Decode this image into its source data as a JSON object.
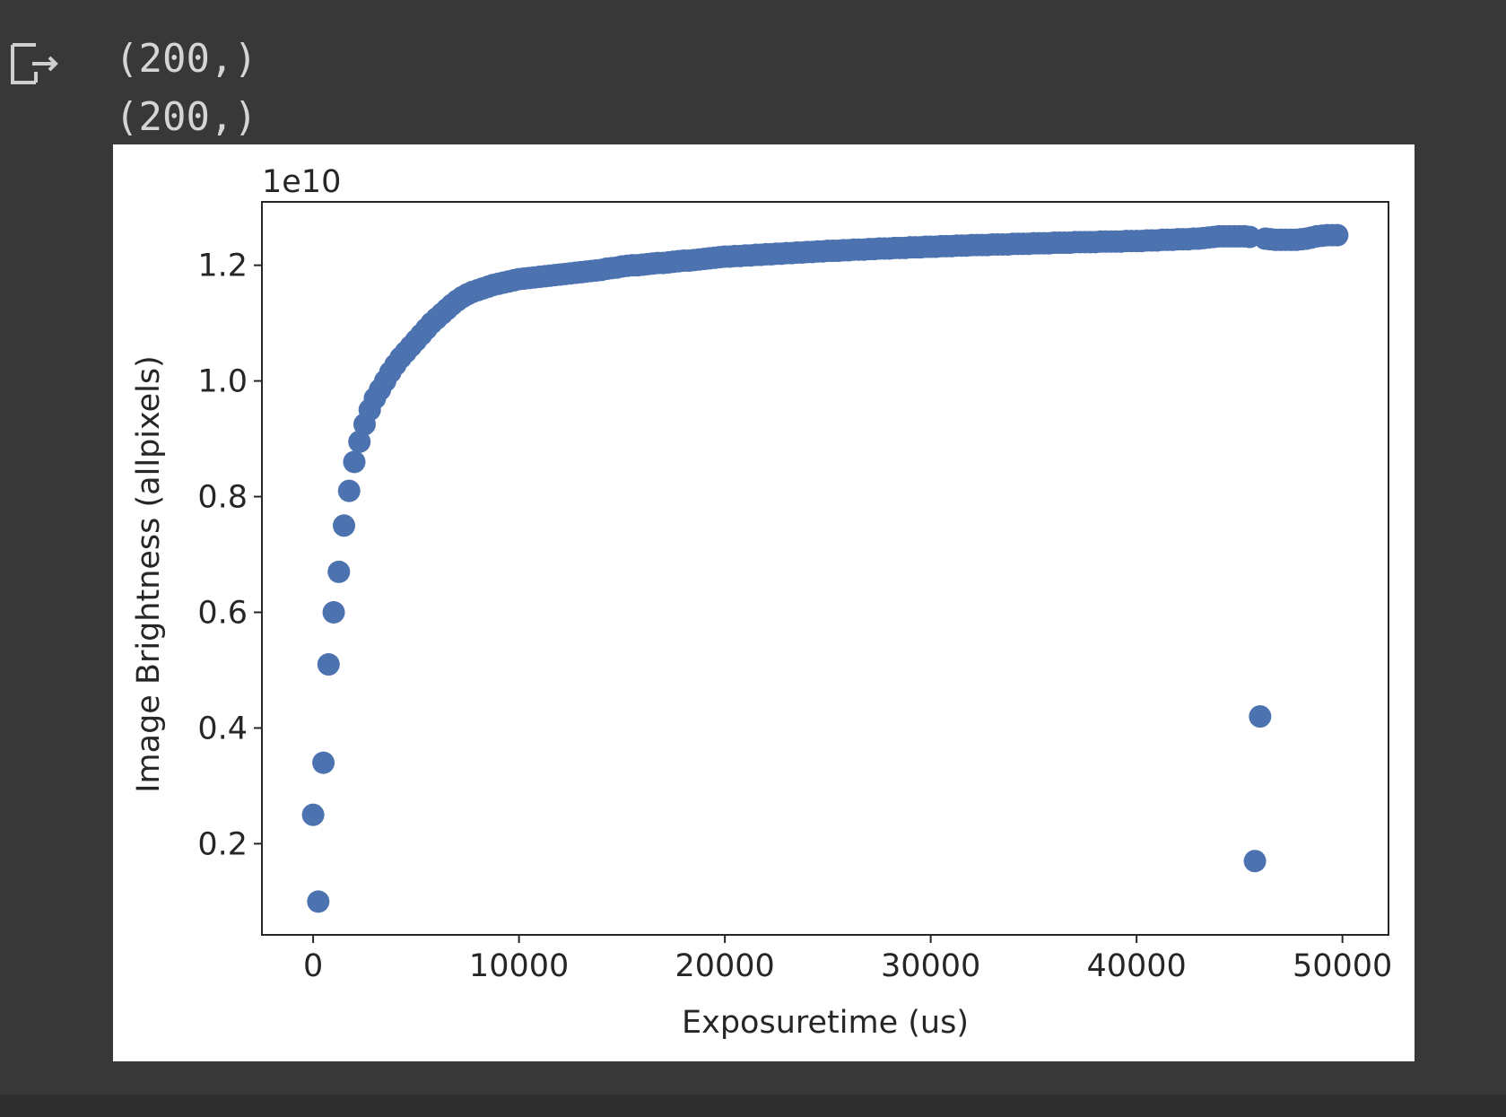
{
  "output_lines": [
    "(200,)",
    "(200,)"
  ],
  "chart_data": {
    "type": "scatter",
    "x_label": "Exposuretime (us)",
    "y_label": "Image Brightness (allpixels)",
    "y_offset_label": "1e10",
    "color": "#4c72b0",
    "x": [
      0,
      250,
      500,
      750,
      1000,
      1250,
      1500,
      1750,
      2000,
      2250,
      2500,
      2750,
      3000,
      3250,
      3500,
      3750,
      4000,
      4250,
      4500,
      4750,
      5000,
      5250,
      5500,
      5750,
      6000,
      6250,
      6500,
      6750,
      7000,
      7250,
      7500,
      7750,
      8000,
      8250,
      8500,
      8750,
      9000,
      9250,
      9500,
      9750,
      10000,
      10250,
      10500,
      10750,
      11000,
      11250,
      11500,
      11750,
      12000,
      12250,
      12500,
      12750,
      13000,
      13250,
      13500,
      13750,
      14000,
      14250,
      14500,
      14750,
      15000,
      15250,
      15500,
      15750,
      16000,
      16250,
      16500,
      16750,
      17000,
      17250,
      17500,
      17750,
      18000,
      18250,
      18500,
      18750,
      19000,
      19250,
      19500,
      19750,
      20000,
      20250,
      20500,
      20750,
      21000,
      21250,
      21500,
      21750,
      22000,
      22250,
      22500,
      22750,
      23000,
      23250,
      23500,
      23750,
      24000,
      24250,
      24500,
      24750,
      25000,
      25250,
      25500,
      25750,
      26000,
      26250,
      26500,
      26750,
      27000,
      27250,
      27500,
      27750,
      28000,
      28250,
      28500,
      28750,
      29000,
      29250,
      29500,
      29750,
      30000,
      30250,
      30500,
      30750,
      31000,
      31250,
      31500,
      31750,
      32000,
      32250,
      32500,
      32750,
      33000,
      33250,
      33500,
      33750,
      34000,
      34250,
      34500,
      34750,
      35000,
      35250,
      35500,
      35750,
      36000,
      36250,
      36500,
      36750,
      37000,
      37250,
      37500,
      37750,
      38000,
      38250,
      38500,
      38750,
      39000,
      39250,
      39500,
      39750,
      40000,
      40250,
      40500,
      40750,
      41000,
      41250,
      41500,
      41750,
      42000,
      42250,
      42500,
      42750,
      43000,
      43250,
      43500,
      43750,
      44000,
      44250,
      44500,
      44750,
      45000,
      45250,
      45500,
      45750,
      46000,
      46250,
      46500,
      46750,
      47000,
      47250,
      47500,
      47750,
      48000,
      48250,
      48500,
      48750,
      49000,
      49250,
      49500,
      49750
    ],
    "values": [
      0.25,
      0.1,
      0.34,
      0.51,
      0.6,
      0.67,
      0.75,
      0.81,
      0.86,
      0.895,
      0.925,
      0.95,
      0.97,
      0.985,
      1.0,
      1.015,
      1.028,
      1.04,
      1.05,
      1.06,
      1.07,
      1.08,
      1.09,
      1.1,
      1.108,
      1.116,
      1.124,
      1.132,
      1.139,
      1.145,
      1.15,
      1.154,
      1.157,
      1.16,
      1.163,
      1.166,
      1.168,
      1.17,
      1.172,
      1.174,
      1.176,
      1.177,
      1.178,
      1.179,
      1.18,
      1.181,
      1.182,
      1.183,
      1.184,
      1.185,
      1.186,
      1.187,
      1.188,
      1.189,
      1.19,
      1.191,
      1.192,
      1.194,
      1.195,
      1.196,
      1.198,
      1.199,
      1.2,
      1.2,
      1.201,
      1.202,
      1.203,
      1.204,
      1.204,
      1.205,
      1.206,
      1.207,
      1.208,
      1.208,
      1.209,
      1.21,
      1.211,
      1.212,
      1.213,
      1.214,
      1.215,
      1.215,
      1.216,
      1.216,
      1.217,
      1.217,
      1.218,
      1.218,
      1.219,
      1.219,
      1.22,
      1.22,
      1.221,
      1.221,
      1.222,
      1.222,
      1.223,
      1.223,
      1.224,
      1.224,
      1.225,
      1.225,
      1.225,
      1.226,
      1.226,
      1.227,
      1.227,
      1.227,
      1.228,
      1.228,
      1.229,
      1.229,
      1.229,
      1.23,
      1.23,
      1.23,
      1.231,
      1.231,
      1.231,
      1.232,
      1.232,
      1.232,
      1.233,
      1.233,
      1.233,
      1.234,
      1.234,
      1.234,
      1.235,
      1.235,
      1.235,
      1.235,
      1.236,
      1.236,
      1.236,
      1.236,
      1.237,
      1.237,
      1.237,
      1.237,
      1.238,
      1.238,
      1.238,
      1.238,
      1.239,
      1.239,
      1.239,
      1.239,
      1.24,
      1.24,
      1.24,
      1.24,
      1.24,
      1.241,
      1.241,
      1.241,
      1.241,
      1.241,
      1.242,
      1.242,
      1.242,
      1.242,
      1.243,
      1.243,
      1.243,
      1.244,
      1.244,
      1.244,
      1.245,
      1.245,
      1.245,
      1.246,
      1.246,
      1.247,
      1.248,
      1.249,
      1.25,
      1.25,
      1.25,
      1.25,
      1.25,
      1.25,
      1.249,
      0.17,
      0.42,
      1.246,
      1.245,
      1.244,
      1.244,
      1.244,
      1.244,
      1.244,
      1.245,
      1.246,
      1.248,
      1.25,
      1.251,
      1.252,
      1.252,
      1.252
    ],
    "xlim": [
      -2487.5,
      52237.5
    ],
    "ylim": [
      0.0424,
      1.3096
    ],
    "xticks": [
      0,
      10000,
      20000,
      30000,
      40000,
      50000
    ],
    "yticks": [
      0.2,
      0.4,
      0.6,
      0.8,
      {
        "value": 1,
        "label": "1.0"
      },
      1.2
    ],
    "grid": false
  }
}
